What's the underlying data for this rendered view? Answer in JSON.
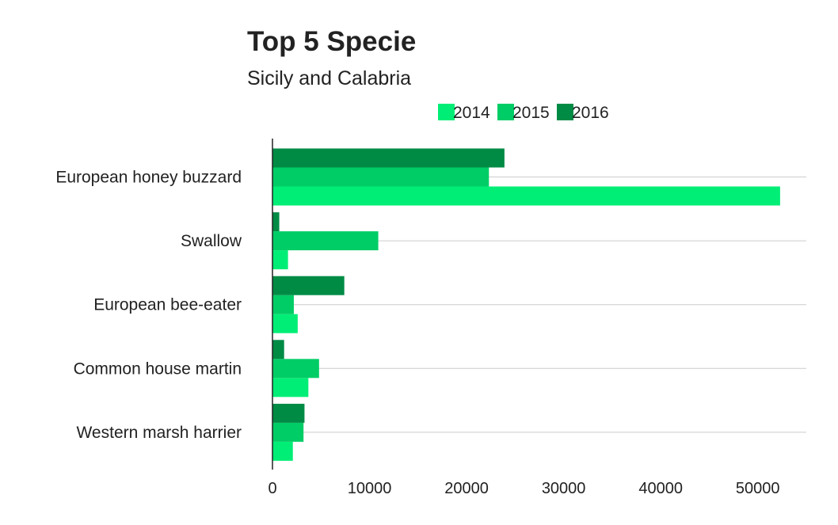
{
  "chart_data": {
    "type": "bar",
    "orientation": "horizontal",
    "title": "Top 5 Specie",
    "subtitle": "Sicily and Calabria",
    "xlabel": "",
    "ylabel": "",
    "categories": [
      "European honey buzzard",
      "Swallow",
      "European bee-eater",
      "Common house martin",
      "Western marsh harrier"
    ],
    "series": [
      {
        "name": "2014",
        "color": "#00ee76",
        "values": [
          52300,
          1600,
          2600,
          3700,
          2100
        ]
      },
      {
        "name": "2015",
        "color": "#00cd66",
        "values": [
          22300,
          10900,
          2200,
          4800,
          3200
        ]
      },
      {
        "name": "2016",
        "color": "#008b45",
        "values": [
          23900,
          700,
          7400,
          1200,
          3300
        ]
      }
    ],
    "xlim": [
      0,
      55000
    ],
    "xticks": [
      0,
      10000,
      20000,
      30000,
      40000,
      50000
    ],
    "grid": true,
    "legend_position": "top"
  }
}
